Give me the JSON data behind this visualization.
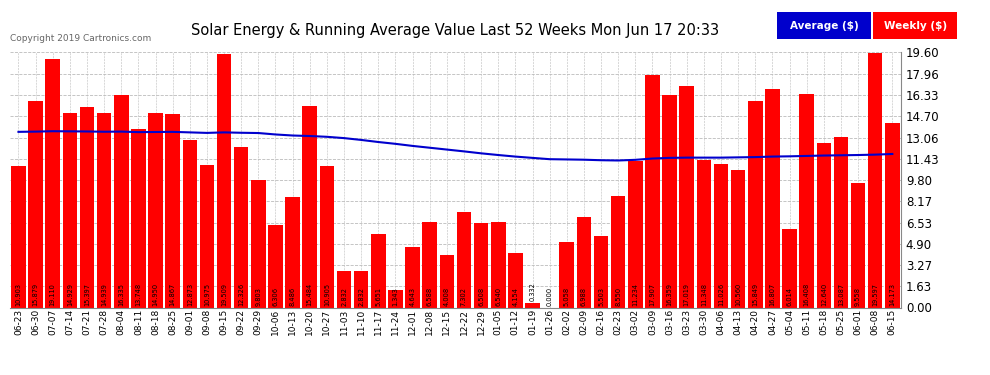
{
  "title": "Solar Energy & Running Average Value Last 52 Weeks Mon Jun 17 20:33",
  "copyright": "Copyright 2019 Cartronics.com",
  "categories": [
    "06-23",
    "06-30",
    "07-07",
    "07-14",
    "07-21",
    "07-28",
    "08-04",
    "08-11",
    "08-18",
    "08-25",
    "09-01",
    "09-08",
    "09-15",
    "09-22",
    "09-29",
    "10-06",
    "10-13",
    "10-20",
    "10-27",
    "11-03",
    "11-10",
    "11-17",
    "11-24",
    "12-01",
    "12-08",
    "12-15",
    "12-22",
    "12-29",
    "01-05",
    "01-12",
    "01-19",
    "01-26",
    "02-02",
    "02-09",
    "02-16",
    "02-23",
    "03-02",
    "03-09",
    "03-16",
    "03-23",
    "03-30",
    "04-06",
    "04-13",
    "04-20",
    "04-27",
    "05-04",
    "05-11",
    "05-18",
    "05-25",
    "06-01",
    "06-08",
    "06-15"
  ],
  "values": [
    10.903,
    15.879,
    19.11,
    14.929,
    15.397,
    14.939,
    16.335,
    13.748,
    14.95,
    14.867,
    12.873,
    10.975,
    19.509,
    12.326,
    9.803,
    6.306,
    8.486,
    15.484,
    10.905,
    2.832,
    2.832,
    5.651,
    1.343,
    4.643,
    6.588,
    4.008,
    7.302,
    6.508,
    6.54,
    4.154,
    0.332,
    0.0,
    5.058,
    6.988,
    5.503,
    8.55,
    11.234,
    17.907,
    16.359,
    17.019,
    11.348,
    11.026,
    10.56,
    15.849,
    16.807,
    6.014,
    16.408,
    12.64,
    13.087,
    9.558,
    19.597,
    14.173
  ],
  "running_avg": [
    13.5,
    13.52,
    13.55,
    13.54,
    13.53,
    13.51,
    13.52,
    13.48,
    13.49,
    13.5,
    13.46,
    13.42,
    13.46,
    13.43,
    13.41,
    13.3,
    13.22,
    13.18,
    13.12,
    13.02,
    12.88,
    12.72,
    12.58,
    12.42,
    12.28,
    12.14,
    12.0,
    11.85,
    11.72,
    11.6,
    11.5,
    11.4,
    11.38,
    11.36,
    11.32,
    11.3,
    11.35,
    11.45,
    11.5,
    11.52,
    11.52,
    11.52,
    11.54,
    11.56,
    11.6,
    11.62,
    11.65,
    11.68,
    11.7,
    11.72,
    11.75,
    11.8
  ],
  "bar_color": "#ff0000",
  "line_color": "#0000cd",
  "bg_color": "#ffffff",
  "plot_bg_color": "#ffffff",
  "grid_color": "#bbbbbb",
  "text_color": "#000000",
  "ylim": [
    0.0,
    19.6
  ],
  "yticks": [
    0.0,
    1.63,
    3.27,
    4.9,
    6.53,
    8.17,
    9.8,
    11.43,
    13.06,
    14.7,
    16.33,
    17.96,
    19.6
  ],
  "legend_avg_bg": "#0000cc",
  "legend_weekly_bg": "#ff0000",
  "legend_avg_text": "Average ($)",
  "legend_weekly_text": "Weekly ($)"
}
